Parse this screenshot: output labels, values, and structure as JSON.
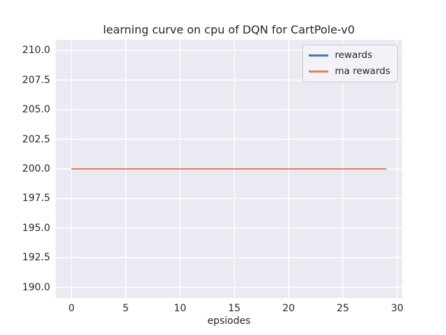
{
  "figure": {
    "background": "#ffffff",
    "plot_background": "#eaeaf2",
    "grid_color": "#ffffff",
    "text_color": "#262626"
  },
  "chart_data": {
    "type": "line",
    "title": "learning curve on cpu of DQN for CartPole-v0",
    "xlabel": "epsiodes",
    "ylabel": "",
    "xlim": [
      -1.45,
      30.45
    ],
    "ylim": [
      189.1,
      210.9
    ],
    "xticks": [
      0,
      5,
      10,
      15,
      20,
      25,
      30
    ],
    "yticks": [
      190.0,
      192.5,
      195.0,
      197.5,
      200.0,
      202.5,
      205.0,
      207.5,
      210.0
    ],
    "ytick_labels": [
      "190.0",
      "192.5",
      "195.0",
      "197.5",
      "200.0",
      "202.5",
      "205.0",
      "207.5",
      "210.0"
    ],
    "grid": true,
    "legend_position": "upper right",
    "series": [
      {
        "name": "rewards",
        "color": "#4c72b0",
        "x": [
          0,
          1,
          2,
          3,
          4,
          5,
          6,
          7,
          8,
          9,
          10,
          11,
          12,
          13,
          14,
          15,
          16,
          17,
          18,
          19,
          20,
          21,
          22,
          23,
          24,
          25,
          26,
          27,
          28,
          29
        ],
        "y": [
          200,
          200,
          200,
          200,
          200,
          200,
          200,
          200,
          200,
          200,
          200,
          200,
          200,
          200,
          200,
          200,
          200,
          200,
          200,
          200,
          200,
          200,
          200,
          200,
          200,
          200,
          200,
          200,
          200,
          200
        ]
      },
      {
        "name": "ma rewards",
        "color": "#dd8452",
        "x": [
          0,
          1,
          2,
          3,
          4,
          5,
          6,
          7,
          8,
          9,
          10,
          11,
          12,
          13,
          14,
          15,
          16,
          17,
          18,
          19,
          20,
          21,
          22,
          23,
          24,
          25,
          26,
          27,
          28,
          29
        ],
        "y": [
          200,
          200,
          200,
          200,
          200,
          200,
          200,
          200,
          200,
          200,
          200,
          200,
          200,
          200,
          200,
          200,
          200,
          200,
          200,
          200,
          200,
          200,
          200,
          200,
          200,
          200,
          200,
          200,
          200,
          200
        ]
      }
    ]
  }
}
